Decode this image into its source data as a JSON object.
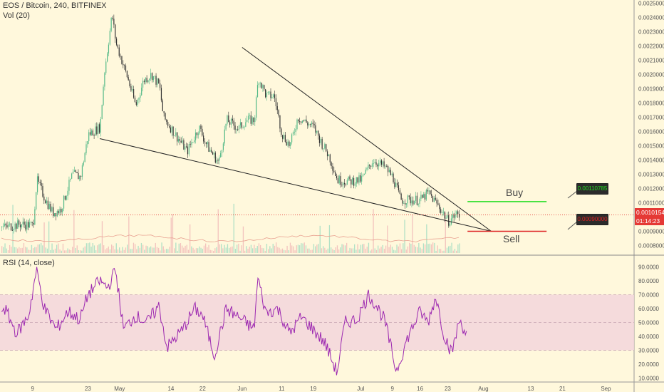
{
  "header": {
    "title": "EOS / Bitcoin, 240, BITFINEX",
    "volume_label": "Vol (20)",
    "rsi_label": "RSI (14, close)"
  },
  "annotations": {
    "buy_label": "Buy",
    "sell_label": "Sell",
    "buy_price": "0.00110785",
    "sell_price": "0.00090000"
  },
  "price_box": {
    "last_price": "0.00101540",
    "countdown": "01:14:23"
  },
  "colors": {
    "background": "#FFF8DC",
    "up_candle": "#53B987",
    "down_candle": "#333333",
    "buy_line": "#22DD22",
    "sell_line": "#DD2222",
    "rsi_line": "#9C27B0",
    "rsi_band": "#F3D6DC",
    "price_line": "#E53935"
  },
  "chart_data": [
    {
      "type": "candlestick",
      "title": "EOS / Bitcoin, 240, BITFINEX",
      "x_tick_labels": [
        "9",
        "23",
        "May",
        "14",
        "22",
        "Jun",
        "11",
        "19",
        "Jul",
        "9",
        "16",
        "23",
        "Aug",
        "13",
        "21",
        "Sep"
      ],
      "y_tick_labels": [
        "0.00250000",
        "0.00240000",
        "0.00230000",
        "0.00220000",
        "0.00210000",
        "0.00200000",
        "0.00190000",
        "0.00180000",
        "0.00170000",
        "0.00160000",
        "0.00150000",
        "0.00140000",
        "0.00130000",
        "0.00120000",
        "0.00110000",
        "0.00100000",
        "0.00090000",
        "0.00080000"
      ],
      "ylim": [
        0.00075,
        0.00255
      ],
      "close_path": [
        [
          "Apr 2",
          0.00093
        ],
        [
          "Apr 6",
          0.00095
        ],
        [
          "Apr 9",
          0.00094
        ],
        [
          "Apr 10",
          0.00126
        ],
        [
          "Apr 12",
          0.00113
        ],
        [
          "Apr 14",
          0.00103
        ],
        [
          "Apr 16",
          0.00105
        ],
        [
          "Apr 19",
          0.0013
        ],
        [
          "Apr 21",
          0.00128
        ],
        [
          "Apr 23",
          0.00158
        ],
        [
          "Apr 26",
          0.00163
        ],
        [
          "Apr 27",
          0.002
        ],
        [
          "Apr 29",
          0.00242
        ],
        [
          "Apr 30",
          0.00222
        ],
        [
          "May 3",
          0.00197
        ],
        [
          "May 5",
          0.00178
        ],
        [
          "May 7",
          0.00196
        ],
        [
          "May 9",
          0.002
        ],
        [
          "May 11",
          0.00192
        ],
        [
          "May 12",
          0.0017
        ],
        [
          "May 15",
          0.00158
        ],
        [
          "May 18",
          0.00146
        ],
        [
          "May 21",
          0.00163
        ],
        [
          "May 23",
          0.0015
        ],
        [
          "May 26",
          0.00138
        ],
        [
          "May 28",
          0.00168
        ],
        [
          "May 31",
          0.00162
        ],
        [
          "Jun 2",
          0.00168
        ],
        [
          "Jun 4",
          0.00168
        ],
        [
          "Jun 5",
          0.00198
        ],
        [
          "Jun 7",
          0.00185
        ],
        [
          "Jun 9",
          0.00185
        ],
        [
          "Jun 11",
          0.00158
        ],
        [
          "Jun 13",
          0.0015
        ],
        [
          "Jun 15",
          0.0017
        ],
        [
          "Jun 19",
          0.00163
        ],
        [
          "Jun 21",
          0.00152
        ],
        [
          "Jun 23",
          0.00142
        ],
        [
          "Jun 25",
          0.00126
        ],
        [
          "Jun 28",
          0.00125
        ],
        [
          "Jul 1",
          0.00126
        ],
        [
          "Jul 4",
          0.0014
        ],
        [
          "Jul 7",
          0.00135
        ],
        [
          "Jul 9",
          0.00128
        ],
        [
          "Jul 11",
          0.00112
        ],
        [
          "Jul 14",
          0.00112
        ],
        [
          "Jul 16",
          0.00112
        ],
        [
          "Jul 18",
          0.00117
        ],
        [
          "Jul 21",
          0.00106
        ],
        [
          "Jul 23",
          0.00097
        ],
        [
          "Jul 25",
          0.00102
        ],
        [
          "Jul 26",
          0.00101
        ]
      ],
      "trendlines": [
        {
          "from": [
            "Jun 1",
            0.00219
          ],
          "to": [
            "Aug 3",
            0.0009
          ]
        },
        {
          "from": [
            "Apr 26",
            0.00155
          ],
          "to": [
            "Aug 3",
            0.0009
          ]
        }
      ],
      "levels": [
        {
          "name": "Buy",
          "value": 0.00110785,
          "from": "Jul 28",
          "to": "Aug 17"
        },
        {
          "name": "Sell",
          "value": 0.0009,
          "from": "Jul 28",
          "to": "Aug 17"
        },
        {
          "name": "Last",
          "value": 0.0010154
        }
      ],
      "volume": {
        "label": "Vol (20)"
      },
      "grid": false
    },
    {
      "type": "line",
      "title": "RSI (14, close)",
      "y_tick_labels": [
        "90.0000",
        "80.0000",
        "70.0000",
        "60.0000",
        "50.0000",
        "40.0000",
        "30.0000",
        "20.0000",
        "10.0000"
      ],
      "ylim": [
        10,
        92
      ],
      "band": [
        30,
        70
      ],
      "series": [
        {
          "name": "RSI (14, close)",
          "values": [
            [
              "Apr 2",
              60
            ],
            [
              "Apr 5",
              42
            ],
            [
              "Apr 8",
              55
            ],
            [
              "Apr 10",
              88
            ],
            [
              "Apr 12",
              60
            ],
            [
              "Apr 15",
              45
            ],
            [
              "Apr 18",
              58
            ],
            [
              "Apr 21",
              52
            ],
            [
              "Apr 23",
              70
            ],
            [
              "Apr 26",
              80
            ],
            [
              "Apr 28",
              75
            ],
            [
              "Apr 30",
              88
            ],
            [
              "May 2",
              45
            ],
            [
              "May 5",
              55
            ],
            [
              "May 8",
              50
            ],
            [
              "May 11",
              62
            ],
            [
              "May 13",
              32
            ],
            [
              "May 17",
              45
            ],
            [
              "May 20",
              60
            ],
            [
              "May 22",
              55
            ],
            [
              "May 25",
              26
            ],
            [
              "May 28",
              60
            ],
            [
              "Jun 1",
              52
            ],
            [
              "Jun 4",
              45
            ],
            [
              "Jun 5",
              82
            ],
            [
              "Jun 7",
              57
            ],
            [
              "Jun 10",
              60
            ],
            [
              "Jun 13",
              42
            ],
            [
              "Jun 16",
              54
            ],
            [
              "Jun 19",
              45
            ],
            [
              "Jun 22",
              35
            ],
            [
              "Jun 25",
              14
            ],
            [
              "Jun 27",
              50
            ],
            [
              "Jun 30",
              52
            ],
            [
              "Jul 3",
              70
            ],
            [
              "Jul 5",
              62
            ],
            [
              "Jul 7",
              52
            ],
            [
              "Jul 10",
              15
            ],
            [
              "Jul 13",
              40
            ],
            [
              "Jul 16",
              58
            ],
            [
              "Jul 18",
              50
            ],
            [
              "Jul 20",
              69
            ],
            [
              "Jul 22",
              42
            ],
            [
              "Jul 24",
              28
            ],
            [
              "Jul 26",
              52
            ],
            [
              "Jul 28",
              40
            ]
          ]
        }
      ]
    }
  ]
}
